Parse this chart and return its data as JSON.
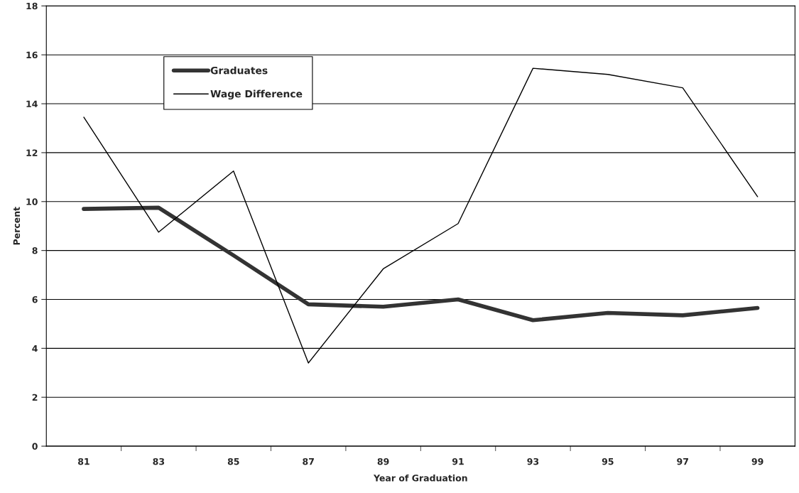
{
  "chart_data": {
    "type": "line",
    "xlabel": "Year of Graduation",
    "ylabel": "Percent",
    "categories": [
      "81",
      "83",
      "85",
      "87",
      "89",
      "91",
      "93",
      "95",
      "97",
      "99"
    ],
    "series": [
      {
        "name": "Graduates",
        "color": "#333333",
        "values": [
          9.7,
          9.75,
          7.8,
          5.8,
          5.7,
          6.0,
          5.15,
          5.45,
          5.35,
          5.65
        ]
      },
      {
        "name": "Wage Difference",
        "color": "#000000",
        "values": [
          13.45,
          8.75,
          11.25,
          3.4,
          7.25,
          9.1,
          15.45,
          15.2,
          14.65,
          10.2
        ]
      }
    ],
    "ylim": [
      0,
      18
    ],
    "yticks": [
      0,
      2,
      4,
      6,
      8,
      10,
      12,
      14,
      16,
      18
    ],
    "grid": "y",
    "legend": "top left",
    "marker": "none",
    "line_style": "solid"
  }
}
